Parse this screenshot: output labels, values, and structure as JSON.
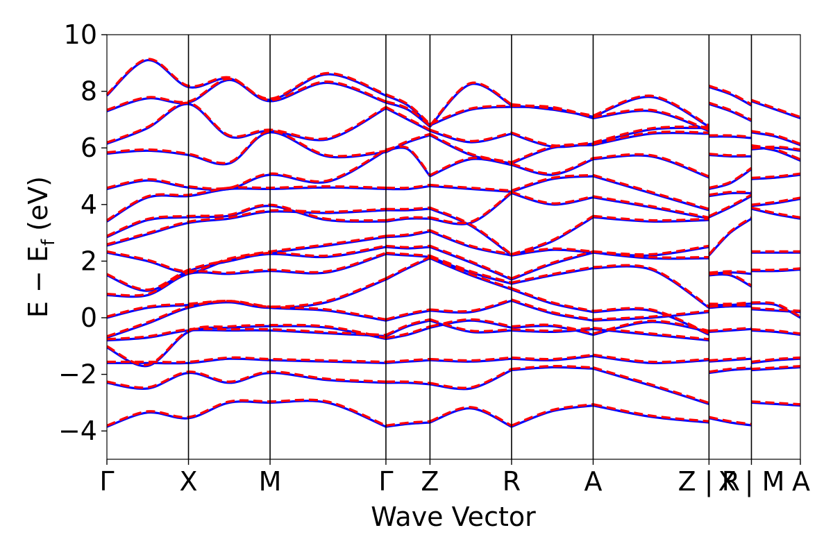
{
  "chart_data": {
    "type": "line",
    "xlabel": "Wave Vector",
    "ylabel": "E − E_f (eV)",
    "ylabel_parts": {
      "main": "E − E",
      "sub": "f",
      "unit": " (eV)"
    },
    "ylim": [
      -5,
      10
    ],
    "yticks": [
      -4,
      -2,
      0,
      2,
      4,
      6,
      8,
      10
    ],
    "ytick_labels": [
      "−4",
      "−2",
      "0",
      "2",
      "4",
      "6",
      "8",
      "10"
    ],
    "xlim": [
      0,
      8.5
    ],
    "kpoints": [
      {
        "label": "Γ",
        "x": 0.0
      },
      {
        "label": "X",
        "x": 1.0
      },
      {
        "label": "M",
        "x": 2.0
      },
      {
        "label": "Γ",
        "x": 3.42
      },
      {
        "label": "Z",
        "x": 3.96
      },
      {
        "label": "R",
        "x": 4.96
      },
      {
        "label": "A",
        "x": 5.96
      },
      {
        "label": "Z | R",
        "x": 7.38
      },
      {
        "label": "X | M",
        "x": 7.9
      },
      {
        "label": "A",
        "x": 8.5
      }
    ],
    "vlines": [
      1.0,
      2.0,
      3.42,
      3.96,
      4.96,
      5.96,
      7.38,
      7.9
    ],
    "grid": false,
    "legend": "none",
    "segments": [
      {
        "x": [
          0.0,
          0.5,
          1.0,
          1.5,
          2.0,
          2.7,
          3.42
        ],
        "bands": [
          [
            -3.85,
            -3.35,
            -3.55,
            -3.0,
            -3.0,
            -3.0,
            -3.85
          ],
          [
            -2.3,
            -2.5,
            -1.95,
            -2.3,
            -1.95,
            -2.2,
            -2.3
          ],
          [
            -1.6,
            -1.6,
            -1.6,
            -1.45,
            -1.5,
            -1.55,
            -1.6
          ],
          [
            -1.05,
            -1.7,
            -0.5,
            -0.35,
            -0.3,
            -0.35,
            -0.75
          ],
          [
            -0.8,
            -0.7,
            -0.45,
            -0.45,
            -0.45,
            -0.55,
            -0.65
          ],
          [
            -0.7,
            -0.2,
            0.35,
            0.55,
            0.35,
            0.25,
            -0.1
          ],
          [
            0.0,
            0.35,
            0.45,
            0.55,
            0.35,
            0.55,
            1.35
          ],
          [
            0.8,
            0.8,
            1.55,
            1.55,
            1.65,
            1.6,
            2.25
          ],
          [
            1.5,
            0.95,
            1.65,
            2.0,
            2.25,
            2.15,
            2.5
          ],
          [
            2.3,
            2.0,
            1.6,
            2.05,
            2.3,
            2.55,
            2.85
          ],
          [
            2.55,
            2.95,
            3.35,
            3.5,
            3.75,
            3.7,
            3.8
          ],
          [
            2.85,
            3.45,
            3.55,
            3.6,
            3.95,
            3.45,
            3.4
          ],
          [
            3.4,
            4.25,
            4.3,
            4.55,
            4.55,
            4.6,
            4.55
          ],
          [
            4.55,
            4.85,
            4.6,
            4.55,
            5.05,
            4.8,
            5.9
          ],
          [
            5.8,
            5.9,
            5.75,
            5.45,
            6.55,
            5.7,
            5.85
          ],
          [
            6.15,
            6.7,
            7.55,
            6.4,
            6.6,
            6.3,
            7.4
          ],
          [
            7.3,
            7.75,
            7.6,
            8.4,
            7.65,
            8.3,
            7.6
          ],
          [
            7.85,
            9.1,
            8.15,
            8.45,
            7.7,
            8.6,
            7.85
          ]
        ]
      },
      {
        "x": [
          3.42,
          3.69,
          3.96
        ],
        "bands": [
          [
            -3.85,
            -3.75,
            -3.7
          ],
          [
            -2.3,
            -2.3,
            -2.35
          ],
          [
            -1.6,
            -1.55,
            -1.5
          ],
          [
            -0.75,
            -0.6,
            -0.35
          ],
          [
            -0.65,
            -0.3,
            -0.1
          ],
          [
            -0.1,
            0.1,
            0.25
          ],
          [
            1.35,
            1.75,
            2.1
          ],
          [
            2.25,
            2.2,
            2.15
          ],
          [
            2.5,
            2.45,
            2.5
          ],
          [
            2.85,
            2.9,
            3.05
          ],
          [
            3.8,
            3.8,
            3.85
          ],
          [
            3.4,
            3.5,
            3.5
          ],
          [
            4.55,
            4.55,
            4.65
          ],
          [
            5.9,
            5.95,
            5.0
          ],
          [
            5.85,
            6.2,
            6.45
          ],
          [
            7.4,
            7.0,
            6.6
          ],
          [
            7.6,
            7.35,
            6.75
          ],
          [
            7.85,
            7.5,
            6.8
          ]
        ]
      },
      {
        "x": [
          3.96,
          4.46,
          4.96
        ],
        "bands": [
          [
            -3.7,
            -3.2,
            -3.85
          ],
          [
            -2.35,
            -2.5,
            -1.85
          ],
          [
            -1.5,
            -1.55,
            -1.45
          ],
          [
            -0.35,
            -0.1,
            -0.35
          ],
          [
            -0.1,
            -0.5,
            -0.45
          ],
          [
            0.25,
            0.2,
            0.6
          ],
          [
            2.1,
            1.5,
            1.0
          ],
          [
            2.15,
            1.6,
            1.2
          ],
          [
            2.5,
            1.95,
            1.35
          ],
          [
            3.05,
            2.5,
            2.2
          ],
          [
            3.85,
            3.25,
            2.2
          ],
          [
            3.5,
            3.35,
            4.4
          ],
          [
            4.65,
            4.55,
            4.45
          ],
          [
            5.0,
            5.6,
            5.4
          ],
          [
            6.45,
            5.75,
            5.45
          ],
          [
            6.6,
            6.2,
            6.5
          ],
          [
            6.75,
            8.25,
            7.5
          ],
          [
            6.8,
            7.35,
            7.45
          ]
        ]
      },
      {
        "x": [
          4.96,
          5.46,
          5.96
        ],
        "bands": [
          [
            -3.85,
            -3.3,
            -3.1
          ],
          [
            -1.85,
            -1.75,
            -1.8
          ],
          [
            -1.45,
            -1.5,
            -1.35
          ],
          [
            -0.35,
            -0.3,
            -0.6
          ],
          [
            -0.45,
            -0.5,
            -0.4
          ],
          [
            0.6,
            0.15,
            -0.1
          ],
          [
            1.0,
            0.5,
            0.2
          ],
          [
            1.2,
            1.5,
            1.75
          ],
          [
            1.35,
            1.9,
            2.3
          ],
          [
            2.2,
            2.4,
            2.3
          ],
          [
            2.2,
            2.7,
            3.55
          ],
          [
            4.4,
            4.0,
            4.25
          ],
          [
            4.45,
            4.9,
            5.0
          ],
          [
            5.4,
            5.05,
            5.6
          ],
          [
            5.45,
            6.0,
            6.1
          ],
          [
            6.5,
            6.05,
            6.15
          ],
          [
            7.5,
            7.35,
            7.1
          ],
          [
            7.45,
            7.4,
            7.05
          ]
        ]
      },
      {
        "x": [
          5.96,
          6.67,
          7.38
        ],
        "bands": [
          [
            -3.1,
            -3.5,
            -3.7
          ],
          [
            -1.8,
            -2.4,
            -3.05
          ],
          [
            -1.35,
            -1.6,
            -1.5
          ],
          [
            -0.6,
            -0.15,
            -0.5
          ],
          [
            -0.4,
            -0.6,
            -0.8
          ],
          [
            -0.1,
            0.0,
            0.2
          ],
          [
            0.2,
            0.25,
            -0.6
          ],
          [
            1.75,
            1.7,
            0.35
          ],
          [
            2.3,
            2.1,
            2.1
          ],
          [
            2.3,
            2.2,
            2.5
          ],
          [
            3.55,
            3.4,
            3.45
          ],
          [
            4.25,
            3.9,
            3.5
          ],
          [
            5.0,
            4.4,
            3.8
          ],
          [
            5.6,
            5.7,
            4.95
          ],
          [
            6.1,
            6.5,
            6.5
          ],
          [
            6.15,
            6.65,
            6.7
          ],
          [
            7.1,
            7.8,
            6.75
          ],
          [
            7.05,
            7.3,
            6.6
          ]
        ]
      },
      {
        "x": [
          7.38,
          7.64,
          7.9
        ],
        "bands": [
          [
            -3.55,
            -3.7,
            -3.8
          ],
          [
            -1.95,
            -1.85,
            -1.8
          ],
          [
            -1.55,
            -1.5,
            -1.45
          ],
          [
            -0.5,
            -0.45,
            -0.4
          ],
          [
            0.35,
            0.4,
            0.4
          ],
          [
            0.45,
            0.45,
            0.5
          ],
          [
            1.5,
            1.5,
            1.1
          ],
          [
            1.55,
            1.6,
            1.55
          ],
          [
            2.2,
            3.0,
            3.5
          ],
          [
            3.55,
            3.9,
            4.3
          ],
          [
            4.3,
            4.4,
            4.4
          ],
          [
            4.55,
            4.75,
            5.25
          ],
          [
            5.75,
            5.7,
            5.7
          ],
          [
            6.4,
            6.4,
            6.35
          ],
          [
            7.55,
            7.3,
            6.95
          ],
          [
            8.15,
            7.9,
            7.5
          ]
        ]
      },
      {
        "x": [
          7.9,
          8.2,
          8.5
        ],
        "bands": [
          [
            -3.0,
            -3.05,
            -3.1
          ],
          [
            -1.85,
            -1.8,
            -1.75
          ],
          [
            -1.6,
            -1.5,
            -1.45
          ],
          [
            -0.45,
            -0.5,
            -0.6
          ],
          [
            0.3,
            0.25,
            0.2
          ],
          [
            0.5,
            0.45,
            0.0
          ],
          [
            1.65,
            1.65,
            1.7
          ],
          [
            2.3,
            2.3,
            2.3
          ],
          [
            3.85,
            3.65,
            3.5
          ],
          [
            3.95,
            4.05,
            4.2
          ],
          [
            4.9,
            4.95,
            5.05
          ],
          [
            5.95,
            6.0,
            5.9
          ],
          [
            6.05,
            5.9,
            5.55
          ],
          [
            6.55,
            6.4,
            6.1
          ],
          [
            7.65,
            7.35,
            7.05
          ]
        ]
      }
    ],
    "series": [
      {
        "name": "",
        "color": "#0000ff",
        "style": "solid"
      },
      {
        "name": "",
        "color": "#ff0000",
        "style": "dashed"
      }
    ]
  }
}
